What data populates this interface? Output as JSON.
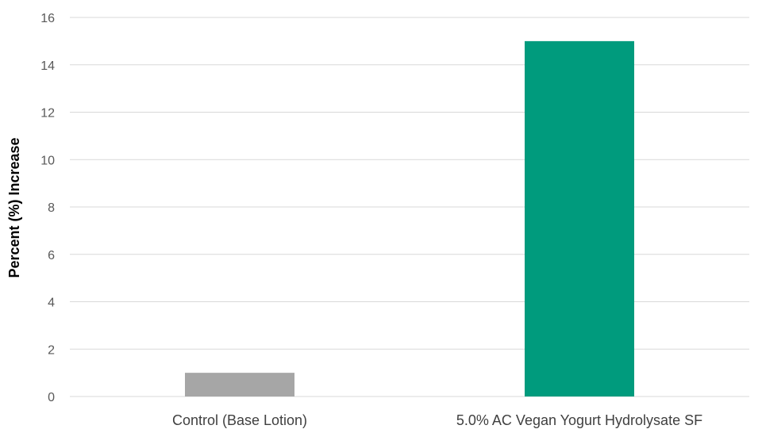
{
  "chart_data": {
    "type": "bar",
    "title": "",
    "xlabel": "",
    "ylabel": "Percent (%) Increase",
    "categories": [
      "Control (Base Lotion)",
      "5.0% AC Vegan Yogurt Hydrolysate SF"
    ],
    "values": [
      1,
      15
    ],
    "colors": [
      "#a6a6a6",
      "#009b7d"
    ],
    "ylim": [
      0,
      16
    ],
    "yticks": [
      0,
      2,
      4,
      6,
      8,
      10,
      12,
      14,
      16
    ],
    "grid": true,
    "legend": "none"
  }
}
